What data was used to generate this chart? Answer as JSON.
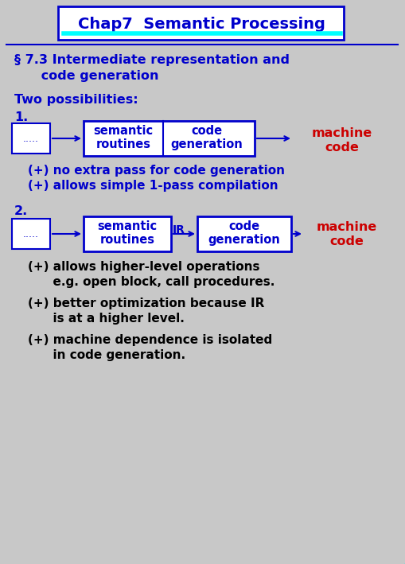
{
  "title": "Chap7  Semantic Processing",
  "title_color": "#0000CC",
  "background_color": "#C8C8C8",
  "outer_bg": "#00FFFF",
  "section_title_line1": "§ 7.3 Intermediate representation and",
  "section_title_line2": "      code generation",
  "two_possibilities": "Two possibilities:",
  "label1": "1.",
  "label2": "2.",
  "box1_text": "semantic\nroutines",
  "box2_text": "code\ngeneration",
  "box3_text": "semantic\nroutines",
  "box4_text": "code\ngeneration",
  "ir_label": "IR",
  "machine_code_line1": "machine",
  "machine_code_line2": "code",
  "plus1": "(+) no extra pass for code generation",
  "plus2": "(+) allows simple 1-pass compilation",
  "plus3_line1": "(+) allows higher-level operations",
  "plus3_line2": "      e.g. open block, call procedures.",
  "plus4_line1": "(+) better optimization because IR",
  "plus4_line2": "      is at a higher level.",
  "plus5_line1": "(+) machine dependence is isolated",
  "plus5_line2": "      in code generation.",
  "blue": "#0000CC",
  "red": "#CC0000",
  "black": "#000000",
  "white": "#FFFFFF",
  "cyan": "#00FFFF",
  "dots": "....."
}
